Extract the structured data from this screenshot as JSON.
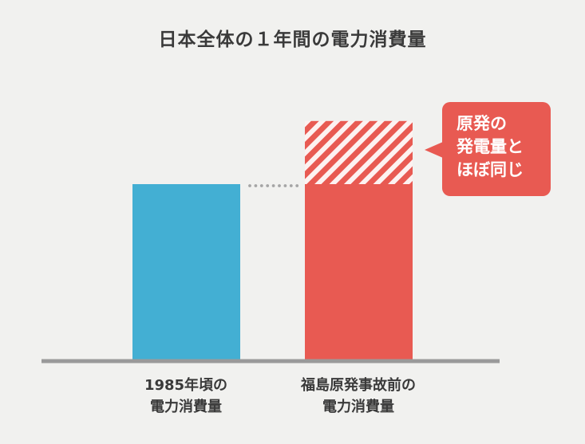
{
  "chart_data": {
    "type": "bar",
    "title": "日本全体の１年間の電力消費量",
    "categories": [
      {
        "lines": [
          "1985年頃の",
          "電力消費量"
        ]
      },
      {
        "lines": [
          "福島原発事故前の",
          "電力消費量"
        ]
      }
    ],
    "values": [
      100,
      136
    ],
    "stacked_top": {
      "category_index": 1,
      "base": 100,
      "top": 136,
      "pattern": "hatched"
    },
    "colors": [
      "#43afd3",
      "#e85a52"
    ],
    "annotation": {
      "lines": [
        "原発の",
        "発電量と",
        "ほぼ同じ"
      ],
      "color": "#e85a52"
    },
    "grid": false,
    "legend": "none"
  }
}
